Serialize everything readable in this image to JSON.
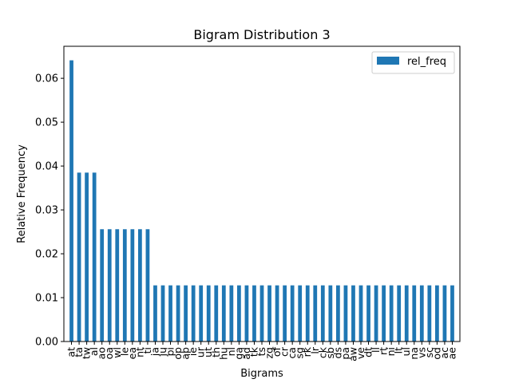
{
  "chart_data": {
    "type": "bar",
    "title": "Bigram Distribution 3",
    "xlabel": "Bigrams",
    "ylabel": "Relative Frequency",
    "ylim": [
      0,
      0.0673
    ],
    "yticks": [
      "0.00",
      "0.01",
      "0.02",
      "0.03",
      "0.04",
      "0.05",
      "0.06"
    ],
    "grid": false,
    "legend_position": "top-right",
    "bar_color": "#1f77b4",
    "categories": [
      "at",
      "ta",
      "tw",
      "al",
      "ao",
      "oa",
      "wl",
      "le",
      "ea",
      "nt",
      "ti",
      "ja",
      "ju",
      "pi",
      "op",
      "ap",
      "ie",
      "ur",
      "ut",
      "th",
      "hu",
      "nl",
      "ga",
      "ad",
      "tk",
      "ts",
      "zg",
      "of",
      "cr",
      "ca",
      "sg",
      "rk",
      "lr",
      "ck",
      "sb",
      "ds",
      "pa",
      "aw",
      "ve",
      "dt",
      "ll",
      "rt",
      "ni",
      "lt",
      "ul",
      "na",
      "vs",
      "sc",
      "od",
      "ac",
      "ae"
    ],
    "series": [
      {
        "name": "rel_freq",
        "values": [
          0.0641,
          0.0385,
          0.0385,
          0.0385,
          0.0256,
          0.0256,
          0.0256,
          0.0256,
          0.0256,
          0.0256,
          0.0256,
          0.0128,
          0.0128,
          0.0128,
          0.0128,
          0.0128,
          0.0128,
          0.0128,
          0.0128,
          0.0128,
          0.0128,
          0.0128,
          0.0128,
          0.0128,
          0.0128,
          0.0128,
          0.0128,
          0.0128,
          0.0128,
          0.0128,
          0.0128,
          0.0128,
          0.0128,
          0.0128,
          0.0128,
          0.0128,
          0.0128,
          0.0128,
          0.0128,
          0.0128,
          0.0128,
          0.0128,
          0.0128,
          0.0128,
          0.0128,
          0.0128,
          0.0128,
          0.0128,
          0.0128,
          0.0128,
          0.0128
        ]
      }
    ]
  }
}
